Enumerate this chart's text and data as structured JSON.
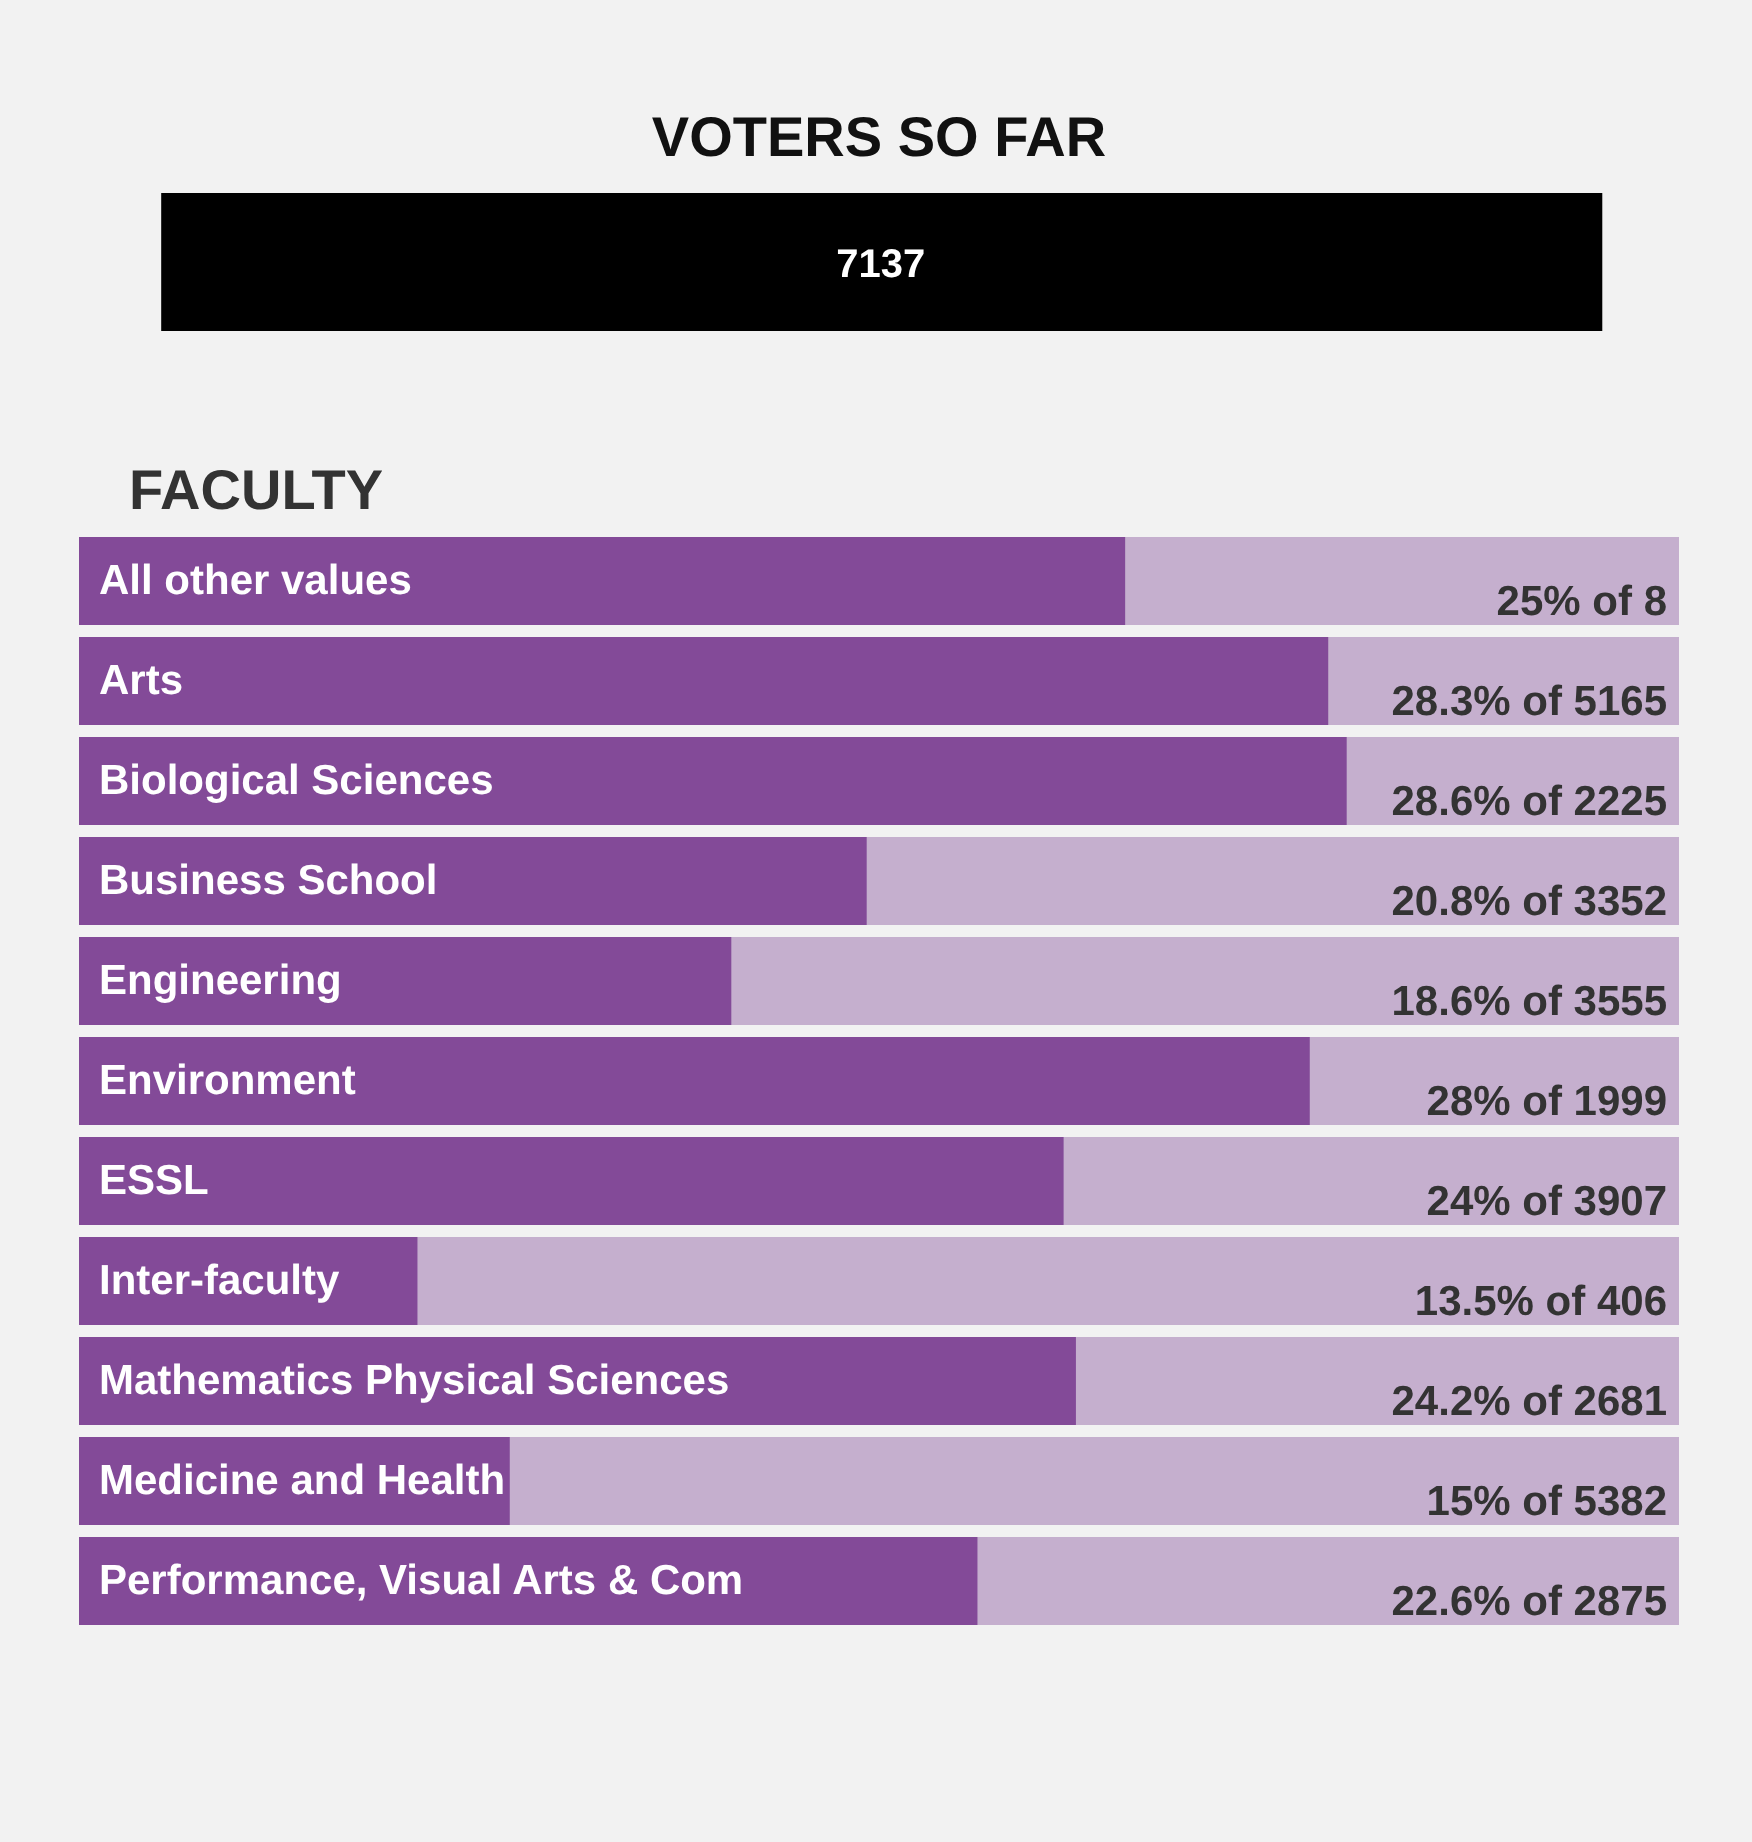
{
  "chart_data": [
    {
      "type": "other",
      "title": "VOTERS SO FAR",
      "annotations": [
        "7137"
      ]
    },
    {
      "type": "bar",
      "orientation": "horizontal",
      "title": "FACULTY",
      "categories": [
        "All other values",
        "Arts",
        "Biological Sciences",
        "Business School",
        "Engineering",
        "Environment",
        "ESSL",
        "Inter-faculty",
        "Mathematics Physical Sciences",
        "Medicine and Health",
        "Performance, Visual Arts & Com"
      ],
      "values": [
        25,
        28.3,
        28.6,
        20.8,
        18.6,
        28,
        24,
        13.5,
        24.2,
        15,
        22.6
      ],
      "value_labels": [
        "25% of 8",
        "28.3% of 5165",
        "28.6% of 2225",
        "20.8% of 3352",
        "18.6% of 3555",
        "28% of 1999",
        "24% of 3907",
        "13.5% of 406",
        "24.2% of 2681",
        "15% of 5382",
        "22.6% of 2875"
      ],
      "color": "#834a98",
      "xlim": [
        8,
        34
      ],
      "tick_labels": false
    }
  ]
}
